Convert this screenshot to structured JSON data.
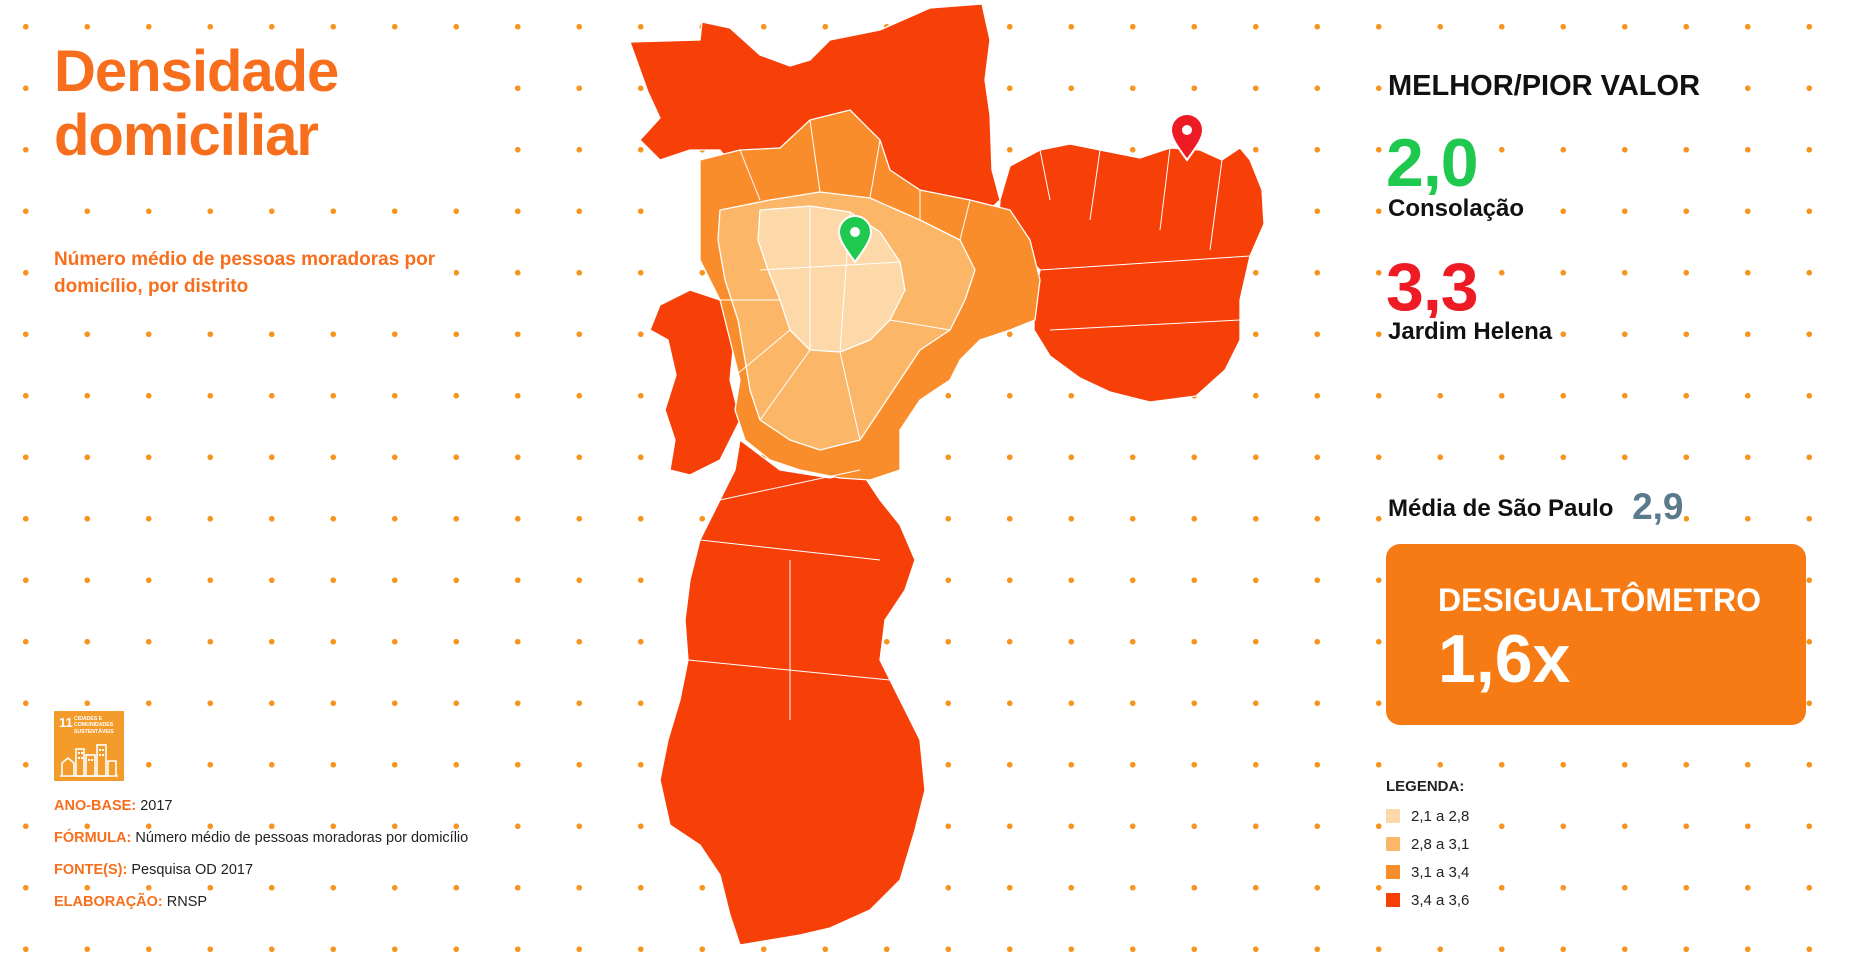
{
  "title": "Densidade domiciliar",
  "subtitle": "Número médio de pessoas moradoras por domicílio, por distrito",
  "ods_badge": {
    "number": "11",
    "label": "Cidades e comunidades sustentáveis",
    "color": "#f39b2b"
  },
  "meta": {
    "ano_base": {
      "key": "ANO-BASE:",
      "value": "2017"
    },
    "formula": {
      "key": "FÓRMULA:",
      "value": "Número médio de pessoas moradoras por domicílio"
    },
    "fontes": {
      "key": "FONTE(S):",
      "value": "Pesquisa OD 2017"
    },
    "elaboracao": {
      "key": "ELABORAÇÃO:",
      "value": "RNSP"
    }
  },
  "summary": {
    "heading": "MELHOR/PIOR VALOR",
    "best": {
      "value": "2,0",
      "district": "Consolação",
      "color": "#1fc84e"
    },
    "worst": {
      "value": "3,3",
      "district": "Jardim Helena",
      "color": "#ee1b24"
    },
    "average_label": "Média de São Paulo",
    "average_value": "2,9",
    "desigualtometro_label": "DESIGUALTÔMETRO",
    "desigualtometro_value": "1,6x"
  },
  "legend": {
    "title": "LEGENDA:",
    "items": [
      {
        "label": "2,1 a 2,8",
        "color": "#fdd8a9"
      },
      {
        "label": "2,8 a 3,1",
        "color": "#fbb668"
      },
      {
        "label": "3,1 a 3,4",
        "color": "#f98d2b"
      },
      {
        "label": "3,4 a 3,6",
        "color": "#f73f08"
      }
    ]
  },
  "map": {
    "markers": [
      {
        "name": "best-marker",
        "color": "#1fc84e"
      },
      {
        "name": "worst-marker",
        "color": "#ee1b24"
      }
    ]
  }
}
